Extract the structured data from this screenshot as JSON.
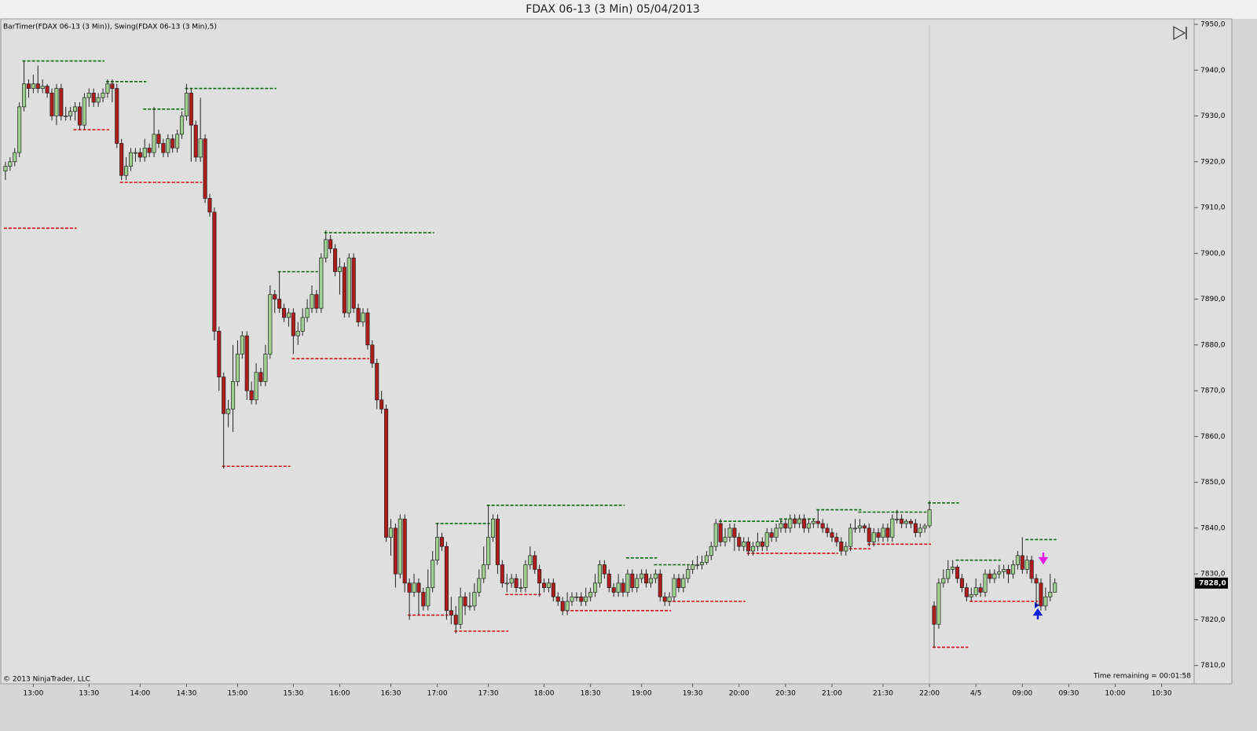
{
  "chart_data": {
    "type": "candlestick",
    "title": "FDAX 06-13 (3 Min)  05/04/2013",
    "indicators": "BarTimer(FDAX 06-13 (3 Min)), Swing(FDAX 06-13 (3 Min),5)",
    "copyright": "© 2013 NinjaTrader, LLC",
    "time_remaining": "Time remaining = 00:01:58",
    "up_color": "#9fd08f",
    "down_color": "#b01c1c",
    "grid": false,
    "xlim": [
      -1,
      256
    ],
    "ylim": [
      7806,
      7951.2
    ],
    "xticks": [
      {
        "value": 6,
        "label": "13:00"
      },
      {
        "value": 18,
        "label": "13:30"
      },
      {
        "value": 29,
        "label": "14:00"
      },
      {
        "value": 39,
        "label": "14:30"
      },
      {
        "value": 50,
        "label": "15:00"
      },
      {
        "value": 62,
        "label": "15:30"
      },
      {
        "value": 72,
        "label": "16:00"
      },
      {
        "value": 83,
        "label": "16:30"
      },
      {
        "value": 93,
        "label": "17:00"
      },
      {
        "value": 104,
        "label": "17:30"
      },
      {
        "value": 116,
        "label": "18:00"
      },
      {
        "value": 126,
        "label": "18:30"
      },
      {
        "value": 137,
        "label": "19:00"
      },
      {
        "value": 148,
        "label": "19:30"
      },
      {
        "value": 158,
        "label": "20:00"
      },
      {
        "value": 168,
        "label": "20:30"
      },
      {
        "value": 178,
        "label": "21:00"
      },
      {
        "value": 189,
        "label": "21:30"
      },
      {
        "value": 199,
        "label": "22:00"
      },
      {
        "value": 209,
        "label": "4/5"
      },
      {
        "value": 219,
        "label": "09:00"
      },
      {
        "value": 229,
        "label": "09:30"
      },
      {
        "value": 239,
        "label": "10:00"
      },
      {
        "value": 249,
        "label": "10:30"
      }
    ],
    "yticks": [
      {
        "value": 7950,
        "label": "7950,0"
      },
      {
        "value": 7940,
        "label": "7940,0"
      },
      {
        "value": 7930,
        "label": "7930,0"
      },
      {
        "value": 7920,
        "label": "7920,0"
      },
      {
        "value": 7910,
        "label": "7910,0"
      },
      {
        "value": 7900,
        "label": "7900,0"
      },
      {
        "value": 7890,
        "label": "7890,0"
      },
      {
        "value": 7880,
        "label": "7880,0"
      },
      {
        "value": 7870,
        "label": "7870,0"
      },
      {
        "value": 7860,
        "label": "7860,0"
      },
      {
        "value": 7850,
        "label": "7850,0"
      },
      {
        "value": 7840,
        "label": "7840,0"
      },
      {
        "value": 7830,
        "label": "7830,0"
      },
      {
        "value": 7820,
        "label": "7820,0"
      },
      {
        "value": 7810,
        "label": "7810,0"
      }
    ],
    "last_price": {
      "value": 7828,
      "label": "7828,0"
    },
    "open": [
      7918,
      7919,
      7920,
      7922,
      7932,
      7937,
      7936,
      7937,
      7936,
      7936.5,
      7935,
      7930,
      7936,
      7930,
      7930,
      7931,
      7932,
      7928,
      7934,
      7935,
      7933,
      7934,
      7935,
      7937,
      7936,
      7924,
      7917,
      7919,
      7922,
      7922,
      7921,
      7923,
      7922,
      7926,
      7924,
      7922,
      7925,
      7923,
      7926,
      7930,
      7935,
      7928,
      7921,
      7925,
      7912,
      7909,
      7883,
      7873,
      7865,
      7866,
      7872,
      7878,
      7882,
      7870,
      7868,
      7874,
      7872,
      7878,
      7891,
      7890,
      7888,
      7886,
      7887,
      7882,
      7883,
      7886,
      7888,
      7891,
      7888,
      7899,
      7903,
      7901,
      7896,
      7897,
      7887,
      7899,
      7888,
      7885,
      7887,
      7880,
      7876,
      7868,
      7866,
      7838,
      7840,
      7830,
      7842,
      7828,
      7826,
      7828,
      7826,
      7823,
      7827,
      7833,
      7838,
      7836,
      7822,
      7821,
      7819,
      7825,
      7823,
      7823,
      7826,
      7829,
      7832,
      7838,
      7842,
      7832,
      7828,
      7828,
      7829,
      7827,
      7827,
      7832,
      7834,
      7831,
      7828,
      7827,
      7828,
      7825,
      7824,
      7822,
      7824,
      7825,
      7825,
      7824,
      7825,
      7826,
      7828,
      7832,
      7830,
      7827,
      7826,
      7828,
      7826,
      7830,
      7827,
      7829,
      7830,
      7828,
      7829,
      7830,
      7825,
      7824,
      7825,
      7829,
      7827,
      7829,
      7831,
      7832,
      7832,
      7832.5,
      7834,
      7836,
      7841,
      7837,
      7838,
      7840,
      7838,
      7836,
      7837,
      7835,
      7836,
      7837,
      7836,
      7839,
      7838,
      7840,
      7841,
      7840,
      7842,
      7841,
      7842,
      7840,
      7841,
      7841.5,
      7841,
      7840,
      7839,
      7838,
      7837,
      7835,
      7836,
      7840,
      7840,
      7840.5,
      7840,
      7837,
      7839,
      7838,
      7840,
      7838,
      7842,
      7842,
      7841,
      7841.5,
      7841,
      7839,
      7840,
      7840.5,
      7823,
      7819,
      7828,
      7829,
      7831,
      7831.5,
      7829,
      7827,
      7825,
      7825.5,
      7827,
      7826,
      7830,
      7829,
      7830,
      7830.5,
      7831,
      7830,
      7832,
      7834,
      7831,
      7833,
      7829,
      7828,
      7823,
      7825,
      7826
    ],
    "high": [
      7920,
      7921,
      7923,
      7933,
      7942,
      7938,
      7939,
      7941,
      7938,
      7937,
      7936,
      7937,
      7937,
      7932,
      7932,
      7933,
      7933,
      7935,
      7936,
      7936,
      7935,
      7936,
      7938,
      7938,
      7937,
      7925,
      7921,
      7923,
      7923,
      7923,
      7925,
      7924,
      7932,
      7927,
      7925,
      7926,
      7926,
      7927,
      7931,
      7937,
      7936,
      7929,
      7934,
      7926,
      7913,
      7910,
      7884,
      7874,
      7868,
      7880,
      7881,
      7883,
      7883,
      7872,
      7876,
      7875,
      7880,
      7893,
      7892,
      7896,
      7889,
      7888,
      7888,
      7885,
      7888,
      7890,
      7893,
      7892,
      7900,
      7905,
      7904,
      7902,
      7899,
      7898,
      7900,
      7900,
      7889,
      7888,
      7888,
      7881,
      7877,
      7870,
      7867,
      7842,
      7841,
      7843,
      7843,
      7829,
      7830,
      7829,
      7827,
      7831,
      7835,
      7841,
      7839,
      7837,
      7825,
      7823,
      7827,
      7826,
      7826,
      7828,
      7831,
      7836,
      7845,
      7843,
      7843,
      7833,
      7830,
      7830,
      7830,
      7829,
      7833,
      7836,
      7835,
      7832,
      7829,
      7829,
      7829,
      7826,
      7825,
      7826,
      7826,
      7826,
      7826,
      7827,
      7827,
      7830,
      7833,
      7833,
      7831,
      7828,
      7830,
      7829,
      7831,
      7831,
      7830,
      7831,
      7831,
      7830,
      7831,
      7831,
      7826,
      7826,
      7830,
      7830,
      7830,
      7832,
      7833,
      7834,
      7834,
      7835,
      7837,
      7842,
      7842,
      7840,
      7841,
      7841,
      7839,
      7838,
      7838,
      7837,
      7839,
      7838,
      7840,
      7840,
      7841,
      7842,
      7842,
      7843,
      7843,
      7843,
      7843,
      7842,
      7842,
      7844,
      7842,
      7841,
      7840,
      7839,
      7838,
      7837,
      7841,
      7842,
      7842,
      7841,
      7841,
      7840,
      7840,
      7841,
      7841,
      7843,
      7844,
      7843,
      7842,
      7842,
      7842,
      7841,
      7841,
      7846,
      7824,
      7829,
      7831,
      7833,
      7833,
      7832,
      7830,
      7828,
      7827,
      7829,
      7828,
      7831,
      7831,
      7831,
      7832,
      7832,
      7832,
      7833,
      7835,
      7838,
      7834,
      7834,
      7830,
      7829,
      7827,
      7830,
      7829
    ],
    "low": [
      7916,
      7918,
      7919,
      7921,
      7931,
      7934,
      7935,
      7935,
      7935,
      7934,
      7929,
      7928,
      7929,
      7929,
      7929,
      7929,
      7927,
      7927,
      7932,
      7932,
      7932,
      7933,
      7934,
      7933,
      7923,
      7916,
      7916,
      7918,
      7920,
      7920,
      7920,
      7921,
      7921,
      7923,
      7921,
      7921,
      7922,
      7922,
      7925,
      7929,
      7920,
      7920,
      7920,
      7911,
      7908,
      7881,
      7870,
      7853,
      7862,
      7861,
      7871,
      7877,
      7868,
      7867,
      7867,
      7871,
      7871,
      7877,
      7887,
      7887,
      7885,
      7884,
      7878,
      7880,
      7882,
      7885,
      7887,
      7887,
      7887,
      7898,
      7900,
      7895,
      7891,
      7886,
      7886,
      7887,
      7884,
      7884,
      7879,
      7875,
      7866,
      7865,
      7837,
      7834,
      7827,
      7829,
      7826,
      7820,
      7825,
      7821,
      7822,
      7822,
      7826,
      7832,
      7835,
      7820,
      7819,
      7817,
      7818,
      7821,
      7822,
      7822,
      7825,
      7828,
      7831,
      7837,
      7830,
      7827,
      7826,
      7827,
      7826,
      7826,
      7826,
      7831,
      7830,
      7825,
      7826,
      7826,
      7824,
      7823,
      7821,
      7821,
      7823,
      7824,
      7823,
      7823,
      7824,
      7825,
      7827,
      7829,
      7826,
      7825,
      7825,
      7825,
      7825,
      7826,
      7826,
      7828,
      7827,
      7827,
      7828,
      7824,
      7823,
      7823,
      7824,
      7826,
      7826,
      7828,
      7830,
      7831,
      7831,
      7832,
      7833,
      7835,
      7836,
      7836,
      7837,
      7835,
      7835,
      7835,
      7834,
      7834,
      7835,
      7835,
      7835,
      7837,
      7837,
      7839,
      7839,
      7839,
      7840,
      7840,
      7839,
      7839,
      7840,
      7840,
      7839,
      7838,
      7837,
      7836,
      7834,
      7834,
      7835,
      7839,
      7839,
      7839,
      7836,
      7836,
      7837,
      7837,
      7837,
      7837,
      7841,
      7840,
      7840,
      7840,
      7838,
      7838,
      7839,
      7840,
      7814,
      7818,
      7827,
      7828,
      7830,
      7828,
      7826,
      7824,
      7824,
      7825,
      7825,
      7825,
      7828,
      7828,
      7829,
      7829,
      7828,
      7829,
      7831,
      7830,
      7830,
      7828,
      7823,
      7822,
      7822,
      7824,
      7826
    ],
    "close": [
      7919,
      7920,
      7922,
      7932,
      7937,
      7936,
      7937,
      7936,
      7936.5,
      7935,
      7930,
      7936,
      7930,
      7930,
      7931,
      7932,
      7928,
      7934,
      7935,
      7933,
      7934,
      7935,
      7937,
      7936,
      7924,
      7917,
      7919,
      7922,
      7922,
      7921,
      7923,
      7922,
      7926,
      7924,
      7922,
      7925,
      7923,
      7926,
      7930,
      7935,
      7928,
      7921,
      7925,
      7912,
      7909,
      7883,
      7873,
      7865,
      7866,
      7872,
      7878,
      7882,
      7870,
      7868,
      7874,
      7872,
      7878,
      7891,
      7890,
      7888,
      7886,
      7887,
      7882,
      7883,
      7886,
      7888,
      7891,
      7888,
      7899,
      7903,
      7901,
      7896,
      7897,
      7887,
      7899,
      7888,
      7885,
      7887,
      7880,
      7876,
      7868,
      7866,
      7838,
      7840,
      7830,
      7842,
      7828,
      7826,
      7828,
      7826,
      7823,
      7827,
      7833,
      7838,
      7836,
      7822,
      7821,
      7819,
      7825,
      7823,
      7823,
      7826,
      7829,
      7832,
      7838,
      7842,
      7832,
      7828,
      7828,
      7829,
      7827,
      7827,
      7832,
      7834,
      7831,
      7828,
      7827,
      7828,
      7825,
      7824,
      7822,
      7824,
      7825,
      7825,
      7824,
      7825,
      7826,
      7828,
      7832,
      7830,
      7827,
      7826,
      7828,
      7826,
      7830,
      7827,
      7829,
      7830,
      7828,
      7829,
      7830,
      7825,
      7824,
      7825,
      7829,
      7827,
      7829,
      7831,
      7832,
      7832,
      7832.5,
      7834,
      7836,
      7841,
      7837,
      7838,
      7840,
      7838,
      7836,
      7837,
      7835,
      7836,
      7837,
      7836,
      7839,
      7838,
      7840,
      7841,
      7840,
      7842,
      7841,
      7842,
      7840,
      7841,
      7841.5,
      7841,
      7840,
      7839,
      7838,
      7837,
      7835,
      7836,
      7840,
      7840,
      7840.5,
      7840,
      7837,
      7839,
      7838,
      7840,
      7838,
      7842,
      7842,
      7841,
      7841.5,
      7841,
      7839,
      7840,
      7840.5,
      7844,
      7819,
      7828,
      7829,
      7831,
      7831.5,
      7829,
      7827,
      7825,
      7825.5,
      7827,
      7826,
      7830,
      7829,
      7830,
      7830.5,
      7831,
      7830,
      7832,
      7834,
      7831,
      7833,
      7829,
      7828,
      7823,
      7825,
      7826,
      7828
    ],
    "swing_highs": {
      "color": "#0a6e0a",
      "levels": [
        [
          4,
          21,
          7942
        ],
        [
          22,
          30,
          7937.5
        ],
        [
          30,
          38,
          7931.5
        ],
        [
          39,
          58,
          7936
        ],
        [
          59,
          67,
          7896
        ],
        [
          69,
          92,
          7904.5
        ],
        [
          93,
          104,
          7841
        ],
        [
          104,
          133,
          7845
        ],
        [
          134,
          140,
          7833.5
        ],
        [
          140,
          147,
          7832
        ],
        [
          154,
          167,
          7841.5
        ],
        [
          167,
          174,
          7842
        ],
        [
          175,
          184,
          7844
        ],
        [
          184,
          192,
          7843.5
        ],
        [
          192,
          198,
          7843.5
        ],
        [
          199,
          205,
          7845.5
        ],
        [
          205,
          214,
          7833
        ],
        [
          220,
          226,
          7837.5
        ]
      ]
    },
    "swing_lows": {
      "color": "#d01010",
      "levels": [
        [
          0,
          15,
          7905.5
        ],
        [
          15,
          22,
          7927
        ],
        [
          25,
          42,
          7915.5
        ],
        [
          47,
          61,
          7853.5
        ],
        [
          62,
          78,
          7877
        ],
        [
          87,
          95,
          7821
        ],
        [
          97,
          108,
          7817.5
        ],
        [
          108,
          115,
          7825.5
        ],
        [
          120,
          143,
          7822
        ],
        [
          143,
          159,
          7824
        ],
        [
          160,
          179,
          7834.5
        ],
        [
          180,
          186,
          7835.5
        ],
        [
          186,
          199,
          7836.5
        ],
        [
          200,
          207,
          7814
        ],
        [
          208,
          222,
          7824
        ]
      ]
    }
  }
}
